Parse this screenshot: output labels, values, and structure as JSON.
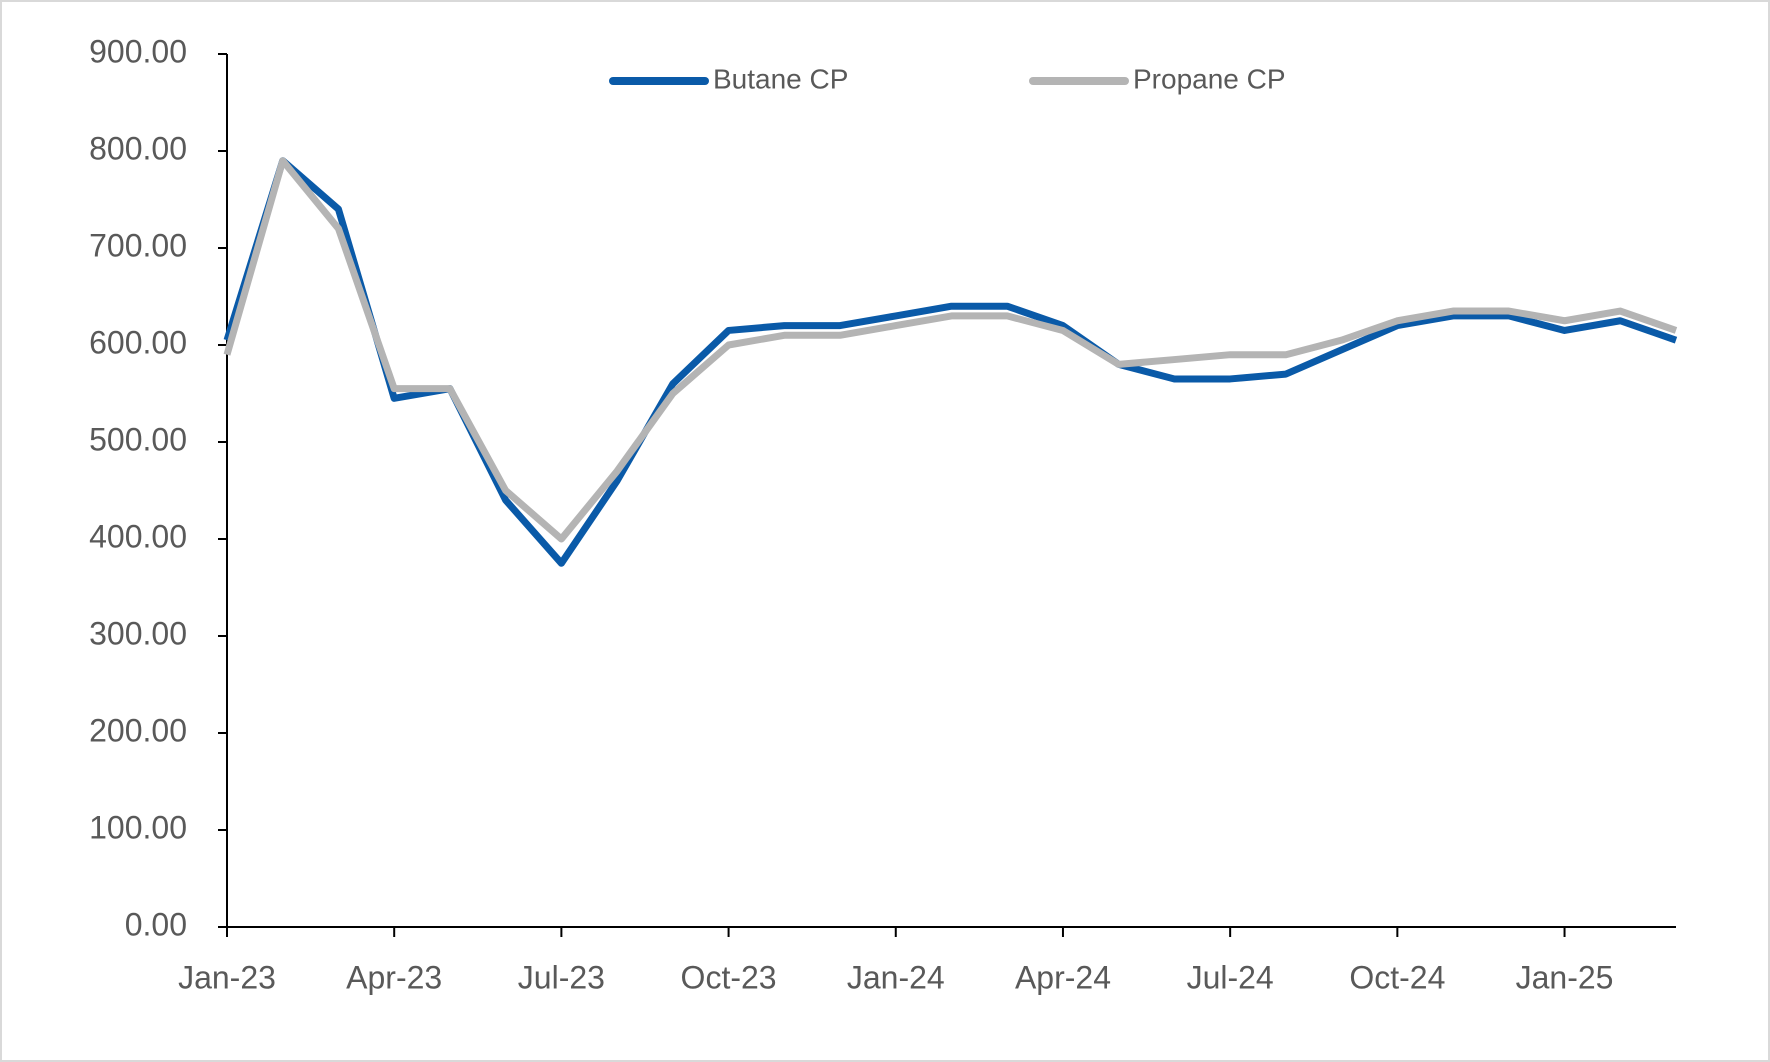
{
  "chart_data": {
    "type": "line",
    "categories": [
      "Jan-23",
      null,
      null,
      "Apr-23",
      null,
      null,
      "Jul-23",
      null,
      null,
      "Oct-23",
      null,
      null,
      "Jan-24",
      null,
      null,
      "Apr-24",
      null,
      null,
      "Jul-24",
      null,
      null,
      "Oct-24",
      null,
      null,
      "Jan-25",
      null,
      null
    ],
    "series": [
      {
        "name": "Butane CP",
        "color": "#0a5aa8",
        "values": [
          605,
          790,
          740,
          545,
          555,
          440,
          375,
          460,
          560,
          615,
          620,
          620,
          630,
          640,
          640,
          620,
          580,
          565,
          565,
          570,
          595,
          620,
          630,
          630,
          615,
          625,
          605
        ]
      },
      {
        "name": "Propane CP",
        "color": "#b4b4b4",
        "values": [
          590,
          790,
          720,
          555,
          555,
          450,
          400,
          470,
          550,
          600,
          610,
          610,
          620,
          630,
          630,
          615,
          580,
          585,
          590,
          590,
          605,
          625,
          635,
          635,
          625,
          635,
          615
        ]
      }
    ],
    "ylim": [
      0,
      900
    ],
    "yticks": [
      {
        "value": 0,
        "label": "0.00"
      },
      {
        "value": 100,
        "label": "100.00"
      },
      {
        "value": 200,
        "label": "200.00"
      },
      {
        "value": 300,
        "label": "300.00"
      },
      {
        "value": 400,
        "label": "400.00"
      },
      {
        "value": 500,
        "label": "500.00"
      },
      {
        "value": 600,
        "label": "600.00"
      },
      {
        "value": 700,
        "label": "700.00"
      },
      {
        "value": 800,
        "label": "800.00"
      },
      {
        "value": 900,
        "label": "900.00"
      }
    ],
    "grid": false,
    "legend": "top"
  }
}
